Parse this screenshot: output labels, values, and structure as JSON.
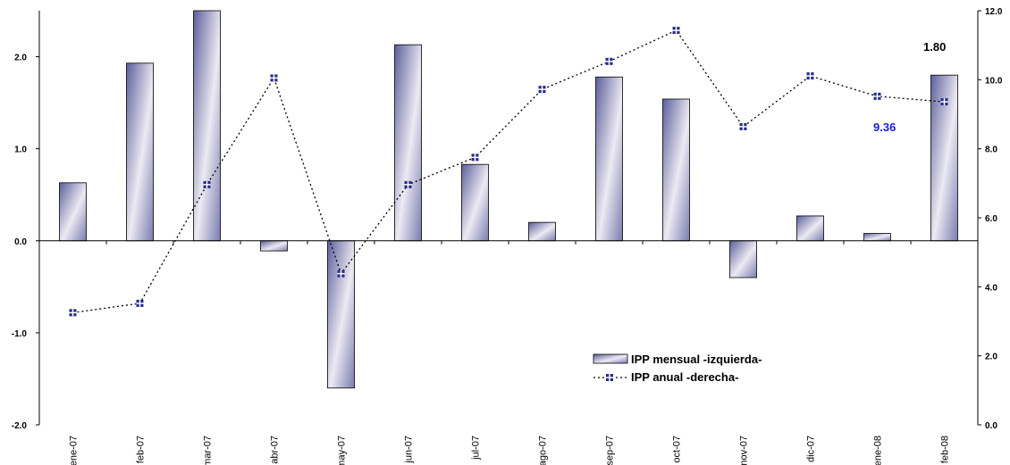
{
  "chart_data": {
    "type": "bar",
    "categories": [
      "ene-07",
      "feb-07",
      "mar-07",
      "abr-07",
      "may-07",
      "jun-07",
      "jul-07",
      "ago-07",
      "sep-07",
      "oct-07",
      "nov-07",
      "dic-07",
      "ene-08",
      "feb-08"
    ],
    "series": [
      {
        "name": "IPP mensual -izquierda-",
        "type": "bar",
        "axis": "left",
        "values": [
          0.63,
          1.93,
          2.5,
          -0.11,
          -1.6,
          2.13,
          0.83,
          0.2,
          1.78,
          1.54,
          -0.4,
          0.27,
          0.08,
          1.8
        ]
      },
      {
        "name": "IPP anual -derecha-",
        "type": "line",
        "axis": "right",
        "values": [
          3.25,
          3.52,
          6.96,
          10.05,
          4.38,
          6.96,
          7.75,
          9.72,
          10.53,
          11.43,
          8.64,
          10.11,
          9.52,
          9.36
        ]
      }
    ],
    "left_axis": {
      "ylim": [
        -2.0,
        2.5
      ],
      "ticks": [
        "-2.0",
        "-1.0",
        "0.0",
        "1.0",
        "2.0"
      ]
    },
    "right_axis": {
      "ylim": [
        0.0,
        12.0
      ],
      "ticks": [
        "0.0",
        "2.0",
        "4.0",
        "6.0",
        "8.0",
        "10.0",
        "12.0"
      ]
    },
    "annotations": [
      {
        "text": "1.80",
        "color": "#000000"
      },
      {
        "text": "9.36",
        "color": "#1c1cd0"
      }
    ],
    "legend_position": "lower-right",
    "grid": false,
    "colors": {
      "bar_dark": "#5c5e9c",
      "bar_light": "#ffffff",
      "marker": "#2a2c8c",
      "line": "#000000"
    }
  }
}
